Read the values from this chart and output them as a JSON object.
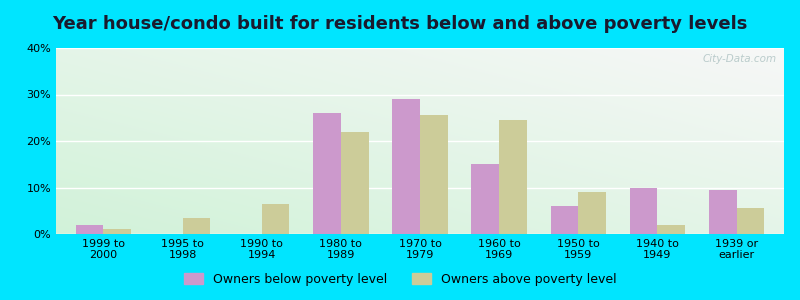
{
  "title": "Year house/condo built for residents below and above poverty levels",
  "categories": [
    "1999 to\n2000",
    "1995 to\n1998",
    "1990 to\n1994",
    "1980 to\n1989",
    "1970 to\n1979",
    "1960 to\n1969",
    "1950 to\n1959",
    "1940 to\n1949",
    "1939 or\nearlier"
  ],
  "below_poverty": [
    2,
    0,
    0,
    26,
    29,
    15,
    6,
    10,
    9.5
  ],
  "above_poverty": [
    1,
    3.5,
    6.5,
    22,
    25.5,
    24.5,
    9,
    2,
    5.5
  ],
  "below_color": "#cc99cc",
  "above_color": "#cccc99",
  "ylim": [
    0,
    40
  ],
  "yticks": [
    0,
    10,
    20,
    30,
    40
  ],
  "ytick_labels": [
    "0%",
    "10%",
    "20%",
    "30%",
    "40%"
  ],
  "background_outer": "#00e5ff",
  "grid_color": "#ffffff",
  "legend_below": "Owners below poverty level",
  "legend_above": "Owners above poverty level",
  "bar_width": 0.35,
  "title_fontsize": 13,
  "watermark": "City-Data.com"
}
